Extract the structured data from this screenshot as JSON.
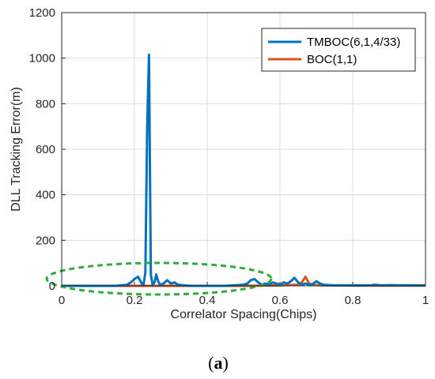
{
  "chart_data": {
    "type": "line",
    "xlabel": "Correlator Spacing(Chips)",
    "ylabel": "DLL Tracking Error(m)",
    "xlim": [
      0,
      1
    ],
    "ylim": [
      0,
      1200
    ],
    "xticks": [
      "0",
      "0.2",
      "0.4",
      "0.6",
      "0.8",
      "1"
    ],
    "yticks": [
      "0",
      "200",
      "400",
      "600",
      "800",
      "1000",
      "1200"
    ],
    "grid": true,
    "legend_position": "top-right",
    "annotation": "dashed green ellipse around low-error region near y=0 for x from 0 to 0.58",
    "series": [
      {
        "name": "TMBOC(6,1,4/33)",
        "color": "#0072BD",
        "x": [
          0,
          0.05,
          0.1,
          0.15,
          0.18,
          0.19,
          0.2,
          0.21,
          0.22,
          0.225,
          0.23,
          0.235,
          0.24,
          0.245,
          0.25,
          0.255,
          0.26,
          0.265,
          0.27,
          0.28,
          0.29,
          0.3,
          0.31,
          0.32,
          0.35,
          0.4,
          0.45,
          0.5,
          0.51,
          0.52,
          0.53,
          0.54,
          0.55,
          0.56,
          0.57,
          0.58,
          0.59,
          0.6,
          0.61,
          0.62,
          0.63,
          0.64,
          0.65,
          0.66,
          0.67,
          0.68,
          0.69,
          0.7,
          0.71,
          0.72,
          0.75,
          0.8,
          0.85,
          0.86,
          0.88,
          0.9,
          0.95,
          1.0
        ],
        "values": [
          0,
          0,
          0,
          0,
          5,
          15,
          30,
          40,
          10,
          5,
          60,
          700,
          1015,
          50,
          5,
          15,
          50,
          20,
          5,
          10,
          25,
          10,
          15,
          5,
          0,
          0,
          0,
          5,
          10,
          25,
          30,
          15,
          5,
          10,
          5,
          15,
          10,
          5,
          15,
          10,
          20,
          35,
          15,
          5,
          10,
          5,
          8,
          20,
          10,
          5,
          2,
          2,
          2,
          5,
          2,
          3,
          2,
          2
        ]
      },
      {
        "name": "BOC(1,1)",
        "color": "#D95319",
        "x": [
          0,
          0.1,
          0.2,
          0.3,
          0.4,
          0.5,
          0.55,
          0.6,
          0.62,
          0.64,
          0.65,
          0.66,
          0.67,
          0.68,
          0.69,
          0.7,
          0.72,
          0.8,
          0.9,
          1.0
        ],
        "values": [
          0,
          0,
          0,
          0,
          0,
          0,
          1,
          2,
          3,
          4,
          5,
          15,
          40,
          10,
          5,
          3,
          2,
          1,
          1,
          1
        ]
      }
    ]
  },
  "caption": {
    "open": "(",
    "letter": "a",
    "close": ")"
  }
}
